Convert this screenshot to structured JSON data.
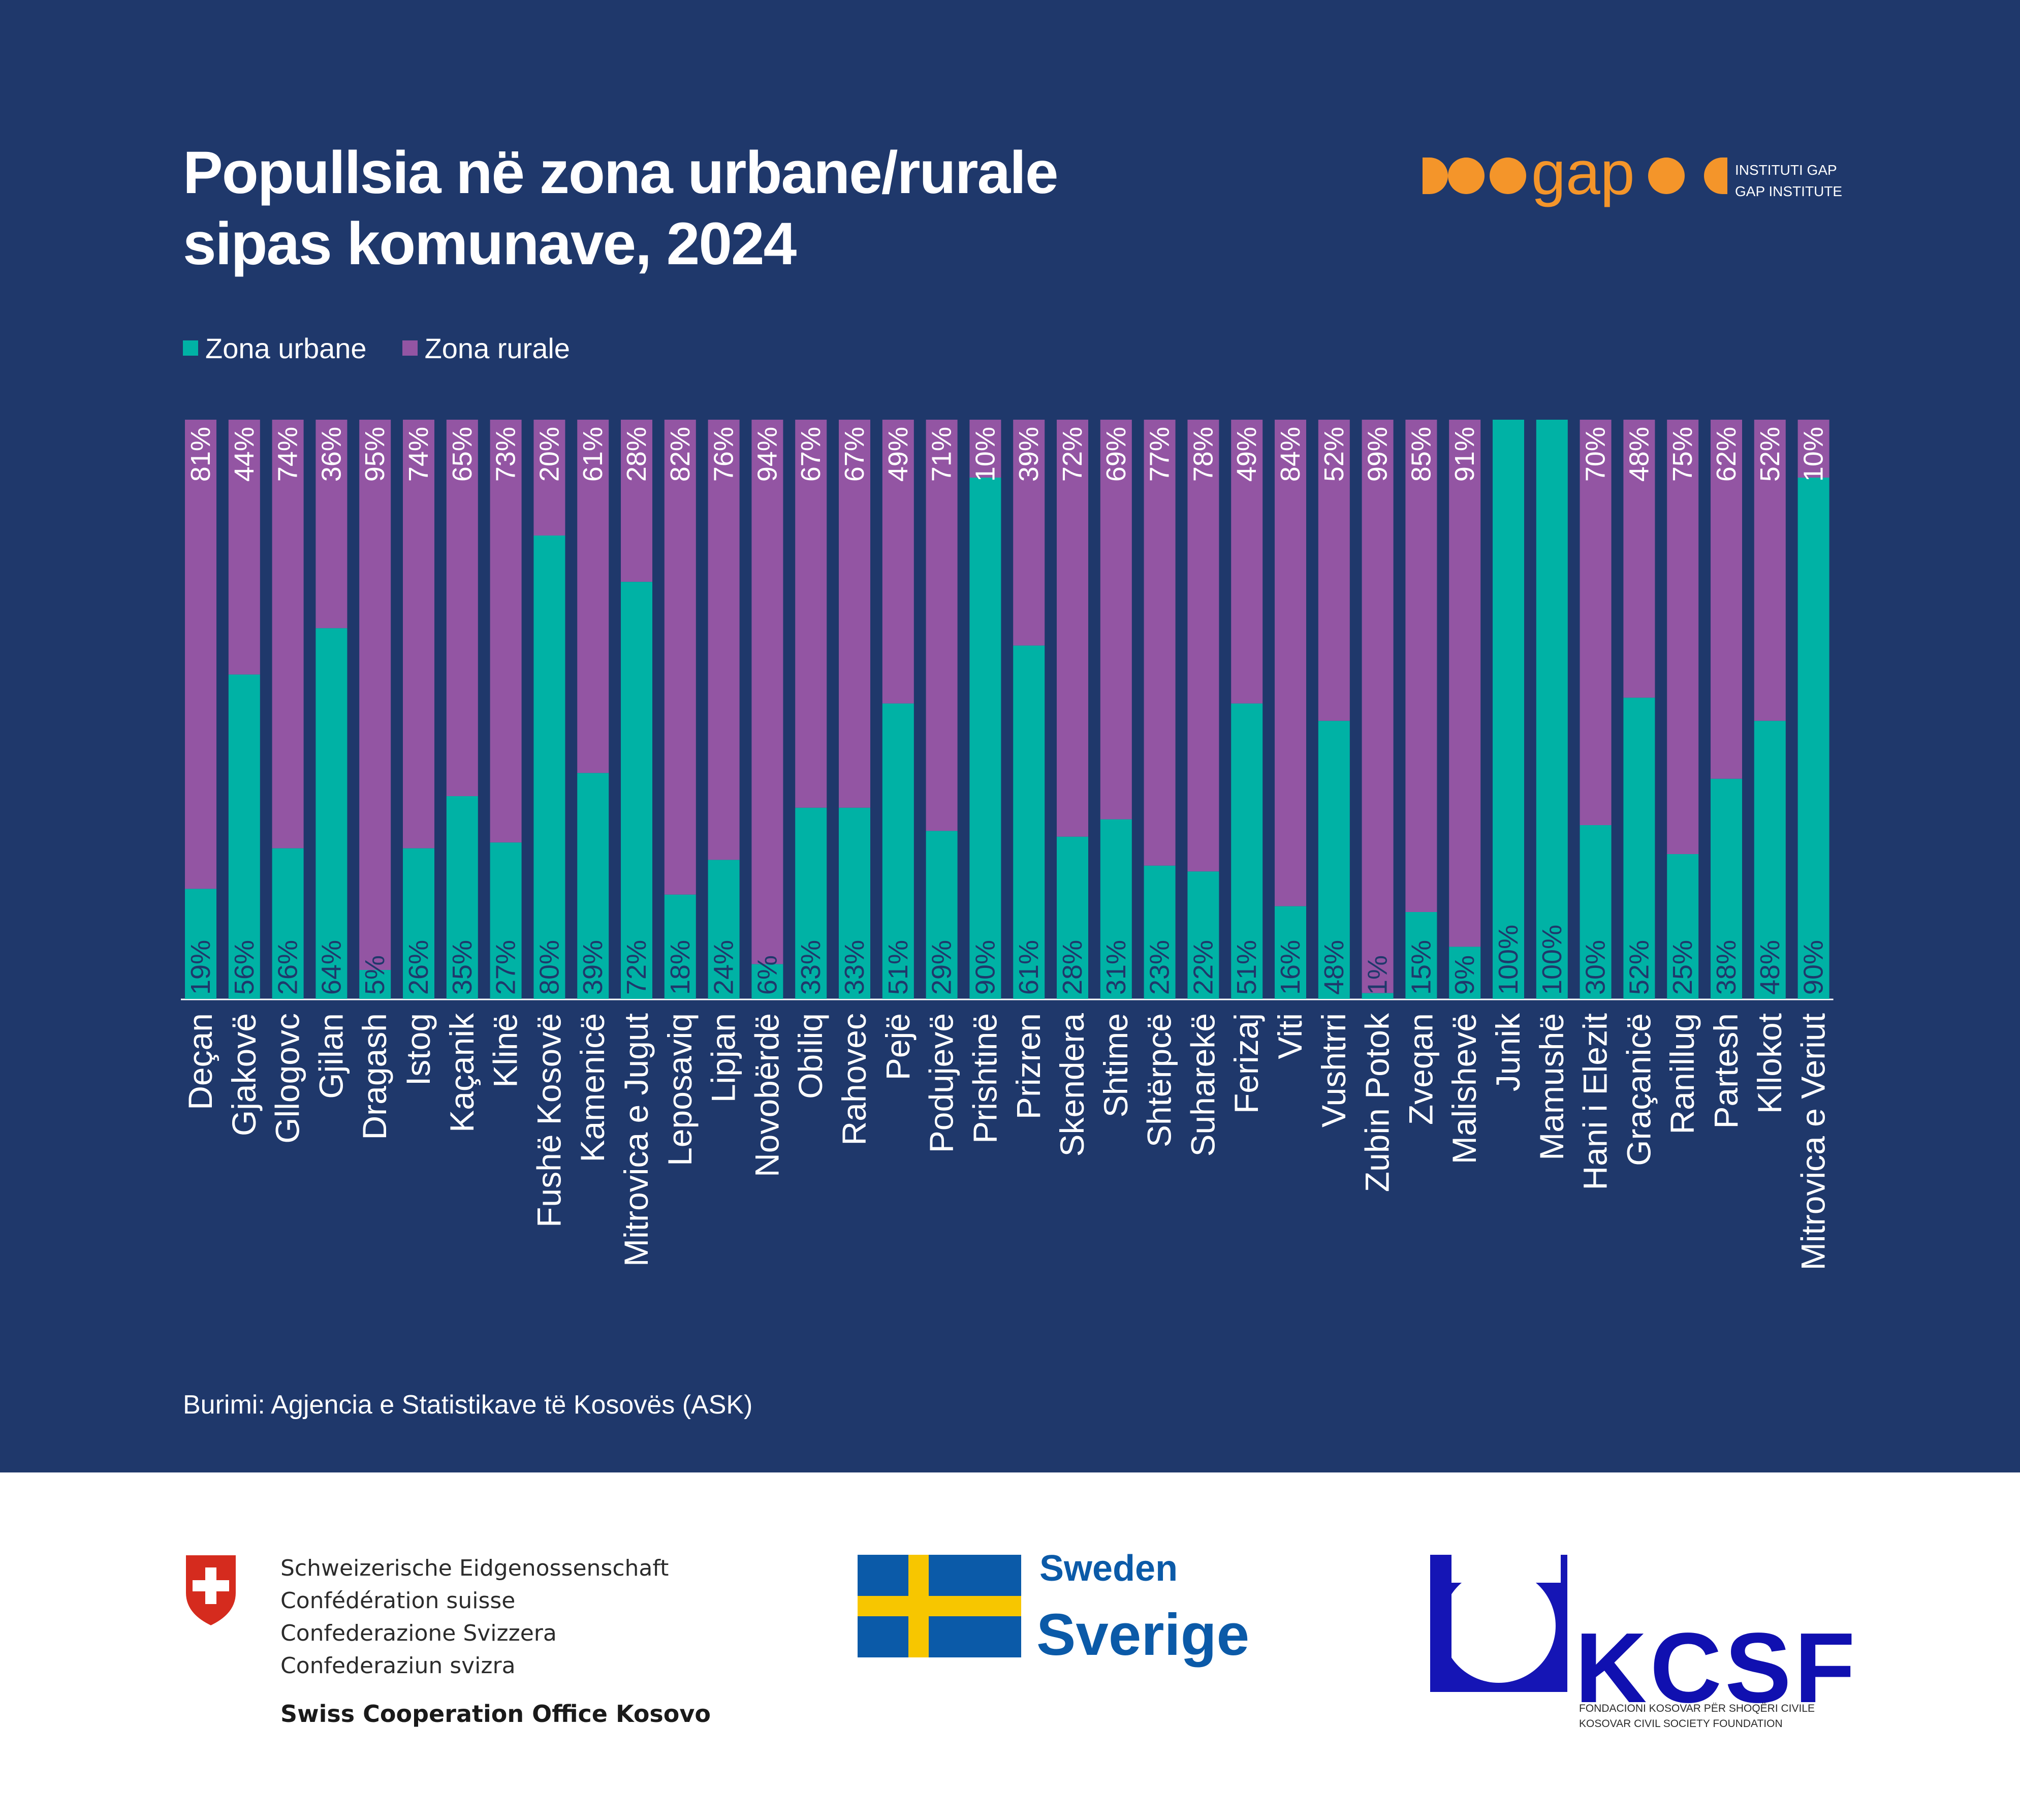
{
  "title_lines": [
    "Popullsia në zona urbane/rurale",
    "sipas komunave, 2024"
  ],
  "logo": {
    "wordmark": "gap",
    "text_line_1": "INSTITUTI GAP",
    "text_line_2": "GAP INSTITUTE",
    "color": "#f4952a"
  },
  "legend": {
    "urban": "Zona urbane",
    "rural": "Zona rurale"
  },
  "colors": {
    "background": "#1f386b",
    "urban": "#00b2a5",
    "rural": "#9355a3",
    "text": "#ffffff"
  },
  "chart_data": {
    "type": "bar",
    "stacked": true,
    "normalized_to_percent": true,
    "categories": [
      "Deçan",
      "Gjakovë",
      "Gllogovc",
      "Gjilan",
      "Dragash",
      "Istog",
      "Kaçanik",
      "Klinë",
      "Fushë Kosovë",
      "Kamenicë",
      "Mitrovica e Jugut",
      "Leposaviq",
      "Lipjan",
      "Novobërdë",
      "Obiliq",
      "Rahovec",
      "Pejë",
      "Podujevë",
      "Prishtinë",
      "Prizren",
      "Skendera",
      "Shtime",
      "Shtërpcë",
      "Suharekë",
      "Ferizaj",
      "Viti",
      "Vushtrri",
      "Zubin Potok",
      "Zveqan",
      "Malishevë",
      "Junik",
      "Mamushë",
      "Hani i Elezit",
      "Graçanicë",
      "Ranillug",
      "Partesh",
      "Kllokot",
      "Mitrovica e Veriut"
    ],
    "series": [
      {
        "name": "Zona urbane",
        "color": "#00b2a5",
        "values": [
          19,
          56,
          26,
          64,
          5,
          26,
          35,
          27,
          80,
          39,
          72,
          18,
          24,
          6,
          33,
          33,
          51,
          29,
          90,
          61,
          28,
          31,
          23,
          22,
          51,
          16,
          48,
          1,
          15,
          9,
          100,
          100,
          30,
          52,
          25,
          38,
          48,
          90
        ],
        "labels": [
          "19%",
          "56%",
          "26%",
          "64%",
          "5%",
          "26%",
          "35%",
          "27%",
          "80%",
          "39%",
          "72%",
          "18%",
          "24%",
          "6%",
          "33%",
          "33%",
          "51%",
          "29%",
          "90%",
          "61%",
          "28%",
          "31%",
          "23%",
          "22%",
          "51%",
          "16%",
          "48%",
          "1%",
          "15%",
          "9%",
          "100%",
          "100%",
          "30%",
          "52%",
          "25%",
          "38%",
          "48%",
          "90%"
        ]
      },
      {
        "name": "Zona rurale",
        "color": "#9355a3",
        "values": [
          81,
          44,
          74,
          36,
          95,
          74,
          65,
          73,
          20,
          61,
          28,
          82,
          76,
          94,
          67,
          67,
          49,
          71,
          10,
          39,
          72,
          69,
          77,
          78,
          49,
          84,
          52,
          99,
          85,
          91,
          0,
          0,
          70,
          48,
          75,
          62,
          52,
          10
        ],
        "labels": [
          "81%",
          "44%",
          "74%",
          "36%",
          "95%",
          "74%",
          "65%",
          "73%",
          "20%",
          "61%",
          "28%",
          "82%",
          "76%",
          "94%",
          "67%",
          "67%",
          "49%",
          "71%",
          "10%",
          "39%",
          "72%",
          "69%",
          "77%",
          "78%",
          "49%",
          "84%",
          "52%",
          "99%",
          "85%",
          "91%",
          "",
          "",
          "70%",
          "48%",
          "75%",
          "62%",
          "52%",
          "10%"
        ]
      }
    ],
    "ylim": [
      0,
      100
    ],
    "legend_position": "top-left",
    "grid": false
  },
  "source": "Burimi: Agjencia e Statistikave të Kosovës (ASK)",
  "sponsors": {
    "swiss": {
      "lines": [
        "Schweizerische Eidgenossenschaft",
        "Confédération suisse",
        "Confederazione Svizzera",
        "Confederaziun svizra"
      ],
      "office": "Swiss Cooperation Office Kosovo"
    },
    "sweden": {
      "line_1": "Sweden",
      "line_2": "Sverige"
    },
    "kcsf": {
      "name": "KCSF",
      "line_1": "FONDACIONI KOSOVAR PËR SHOQËRI CIVILE",
      "line_2": "KOSOVAR CIVIL SOCIETY FOUNDATION"
    }
  }
}
